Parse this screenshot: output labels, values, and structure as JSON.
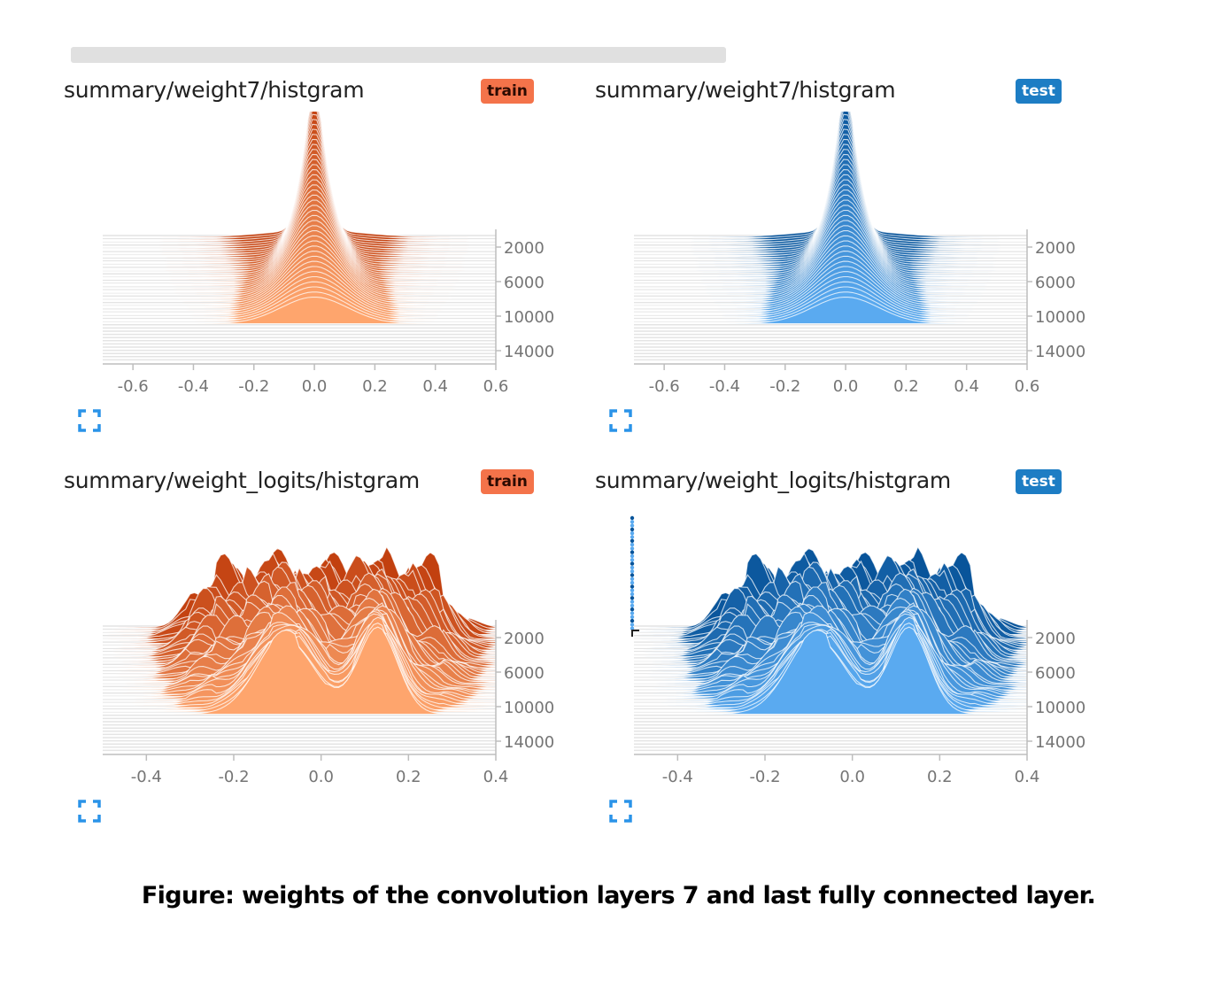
{
  "caption": "Figure: weights of the convolution layers 7 and  last fully connected layer.",
  "colors": {
    "train_dark": "#c2400f",
    "train_light": "#fea56d",
    "test_dark": "#08549a",
    "test_light": "#5aaaf0",
    "expand_icon": "#2a93e8",
    "train_badge": "#f4734a",
    "test_badge": "#1d7dc4"
  },
  "panels": [
    {
      "title": "summary/weight7/histgram",
      "badge": "train",
      "icon": "expand-icon"
    },
    {
      "title": "summary/weight7/histgram",
      "badge": "test",
      "icon": "expand-icon"
    },
    {
      "title": "summary/weight_logits/histgram",
      "badge": "train",
      "icon": "expand-icon"
    },
    {
      "title": "summary/weight_logits/histgram",
      "badge": "test",
      "icon": "expand-icon"
    }
  ],
  "chart_data": [
    {
      "type": "area",
      "title": "summary/weight7/histgram",
      "run": "train",
      "x_ticks": [
        "-0.6",
        "-0.4",
        "-0.2",
        "0.0",
        "0.2",
        "0.4",
        "0.6"
      ],
      "x_range": [
        -0.7,
        0.6
      ],
      "step_ticks": [
        "2000",
        "6000",
        "10000",
        "14000"
      ],
      "distribution": "single peak centered at 0.0, narrow at early steps and broadening by step 14000"
    },
    {
      "type": "area",
      "title": "summary/weight7/histgram",
      "run": "test",
      "x_ticks": [
        "-0.6",
        "-0.4",
        "-0.2",
        "0.0",
        "0.2",
        "0.4",
        "0.6"
      ],
      "x_range": [
        -0.7,
        0.6
      ],
      "step_ticks": [
        "2000",
        "6000",
        "10000",
        "14000"
      ],
      "distribution": "single peak centered at 0.0, narrow at early steps and broadening by step 14000"
    },
    {
      "type": "area",
      "title": "summary/weight_logits/histgram",
      "run": "train",
      "x_ticks": [
        "-0.4",
        "-0.2",
        "0.0",
        "0.2",
        "0.4"
      ],
      "x_range": [
        -0.5,
        0.4
      ],
      "step_ticks": [
        "2000",
        "6000",
        "10000",
        "14000"
      ],
      "distribution": "broad jagged plateau from about -0.3 to 0.3, late steps bimodal with peaks near -0.08 and 0.13"
    },
    {
      "type": "area",
      "title": "summary/weight_logits/histgram",
      "run": "test",
      "x_ticks": [
        "-0.4",
        "-0.2",
        "0.0",
        "0.2",
        "0.4"
      ],
      "x_range": [
        -0.5,
        0.4
      ],
      "step_ticks": [
        "2000",
        "6000",
        "10000",
        "14000"
      ],
      "distribution": "broad jagged plateau from about -0.3 to 0.3, late steps bimodal with peaks near -0.08 and 0.13"
    }
  ]
}
